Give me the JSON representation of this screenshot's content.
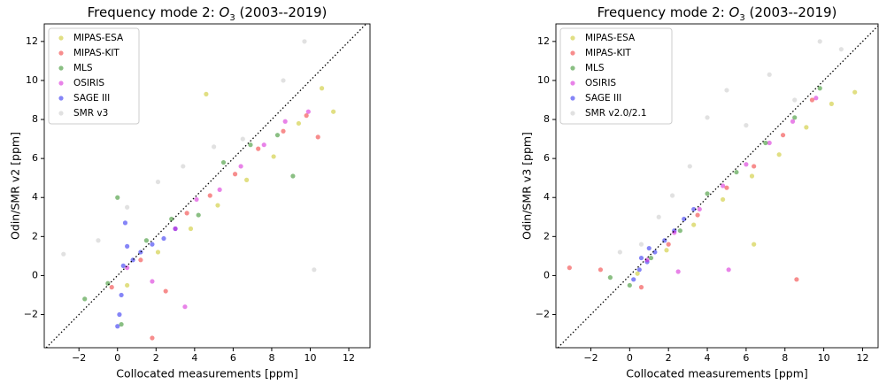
{
  "chart_data": [
    {
      "type": "scatter",
      "title": [
        "Frequency mode 2: ",
        "O",
        "3",
        " (2003--2019)"
      ],
      "xlabel": "Collocated measurements [ppm]",
      "ylabel": "Odin/SMR v2 [ppm]",
      "xlim": [
        -3.8,
        13.1
      ],
      "ylim": [
        -3.7,
        12.9
      ],
      "xticks": [
        {
          "value": -2,
          "label": "−2"
        },
        0,
        2,
        4,
        6,
        8,
        10,
        12
      ],
      "yticks": [
        {
          "value": -2,
          "label": "−2"
        },
        0,
        2,
        4,
        6,
        8,
        10,
        12
      ],
      "legend": "upper left",
      "series": [
        {
          "name": "MIPAS-ESA",
          "color": "#c8c41e",
          "x": [
            0.5,
            2.1,
            3.8,
            5.2,
            6.7,
            8.1,
            9.4,
            10.6,
            11.2,
            4.6
          ],
          "values": [
            -0.5,
            1.2,
            2.4,
            3.6,
            4.9,
            6.1,
            7.8,
            9.6,
            8.4,
            9.3
          ]
        },
        {
          "name": "MIPAS-KIT",
          "color": "#f03030",
          "x": [
            -0.3,
            1.2,
            2.5,
            3.6,
            4.8,
            6.1,
            7.3,
            8.6,
            9.8,
            10.4,
            1.8
          ],
          "values": [
            -0.6,
            0.8,
            -0.8,
            3.2,
            4.1,
            5.2,
            6.5,
            7.4,
            8.2,
            7.1,
            -3.2
          ]
        },
        {
          "name": "MLS",
          "color": "#2a8a1e",
          "x": [
            -1.7,
            -0.5,
            0.2,
            1.5,
            2.8,
            4.2,
            5.5,
            6.9,
            8.3,
            9.1,
            0.0
          ],
          "values": [
            -1.2,
            -0.4,
            -2.5,
            1.8,
            2.9,
            3.1,
            5.8,
            6.7,
            7.2,
            5.1,
            4.0
          ]
        },
        {
          "name": "OSIRIS",
          "color": "#d61ed6",
          "x": [
            0.5,
            1.8,
            3.0,
            4.1,
            5.3,
            6.4,
            7.6,
            8.7,
            9.9,
            3.5
          ],
          "values": [
            0.4,
            -0.3,
            2.4,
            3.9,
            4.4,
            5.6,
            6.7,
            7.9,
            8.4,
            -1.6
          ]
        },
        {
          "name": "SAGE III",
          "color": "#2020f0",
          "x": [
            0.1,
            0.2,
            0.3,
            0.5,
            0.8,
            1.2,
            1.8,
            2.4,
            3.0,
            0.0,
            0.4
          ],
          "values": [
            -2.0,
            -1.0,
            0.5,
            1.5,
            0.8,
            1.2,
            1.6,
            1.9,
            2.4,
            -2.6,
            2.7
          ]
        },
        {
          "name": "SMR v3",
          "color": "#c8c8c8",
          "x": [
            -2.8,
            -1.0,
            0.5,
            3.4,
            5.0,
            6.5,
            8.6,
            9.7,
            10.2,
            2.1
          ],
          "values": [
            1.1,
            1.8,
            3.5,
            5.6,
            6.6,
            7.0,
            10.0,
            12.0,
            0.3,
            4.8
          ]
        }
      ]
    },
    {
      "type": "scatter",
      "title": [
        "Frequency mode 2: ",
        "O",
        "3",
        " (2003--2019)"
      ],
      "xlabel": "Collocated measurements [ppm]",
      "ylabel": "Odin/SMR v3 [ppm]",
      "xlim": [
        -3.8,
        12.8
      ],
      "ylim": [
        -3.7,
        12.9
      ],
      "xticks": [
        {
          "value": -2,
          "label": "−2"
        },
        0,
        2,
        4,
        6,
        8,
        10,
        12
      ],
      "yticks": [
        {
          "value": -2,
          "label": "−2"
        },
        0,
        2,
        4,
        6,
        8,
        10,
        12
      ],
      "legend": "upper left",
      "series": [
        {
          "name": "MIPAS-ESA",
          "color": "#c8c41e",
          "x": [
            0.4,
            1.9,
            3.3,
            4.8,
            6.3,
            7.7,
            9.1,
            10.4,
            11.6,
            6.4
          ],
          "values": [
            0.1,
            1.3,
            2.6,
            3.9,
            5.1,
            6.2,
            7.6,
            8.8,
            9.4,
            1.6
          ]
        },
        {
          "name": "MIPAS-KIT",
          "color": "#f03030",
          "x": [
            -3.1,
            -1.5,
            0.6,
            2.0,
            3.5,
            5.0,
            6.4,
            7.9,
            9.4,
            8.6
          ],
          "values": [
            0.4,
            0.3,
            -0.6,
            1.6,
            3.1,
            4.5,
            5.6,
            7.2,
            9.0,
            -0.2
          ]
        },
        {
          "name": "MLS",
          "color": "#2a8a1e",
          "x": [
            -1.0,
            0.0,
            1.1,
            2.6,
            4.0,
            5.5,
            7.0,
            8.5,
            9.8
          ],
          "values": [
            -0.1,
            -0.5,
            0.9,
            2.3,
            4.2,
            5.3,
            6.8,
            8.1,
            9.6
          ]
        },
        {
          "name": "OSIRIS",
          "color": "#d61ed6",
          "x": [
            0.9,
            2.3,
            3.6,
            4.8,
            6.0,
            7.2,
            8.4,
            9.6,
            5.1,
            2.5
          ],
          "values": [
            0.8,
            2.2,
            3.4,
            4.6,
            5.7,
            6.8,
            7.9,
            9.1,
            0.3,
            0.2
          ]
        },
        {
          "name": "SAGE III",
          "color": "#2020f0",
          "x": [
            0.2,
            0.5,
            0.9,
            1.3,
            1.8,
            2.3,
            2.8,
            3.3,
            1.0,
            0.6
          ],
          "values": [
            -0.2,
            0.3,
            0.7,
            1.2,
            1.8,
            2.3,
            2.9,
            3.4,
            1.4,
            0.9
          ]
        },
        {
          "name": "SMR v2.0/2.1",
          "color": "#c8c8c8",
          "x": [
            -0.5,
            0.6,
            1.5,
            2.2,
            3.1,
            4.0,
            5.0,
            6.0,
            7.2,
            8.5,
            9.8,
            10.9
          ],
          "values": [
            1.2,
            1.6,
            3.0,
            4.1,
            5.6,
            8.1,
            9.5,
            7.7,
            10.3,
            9.0,
            12.0,
            11.6
          ]
        }
      ]
    }
  ]
}
